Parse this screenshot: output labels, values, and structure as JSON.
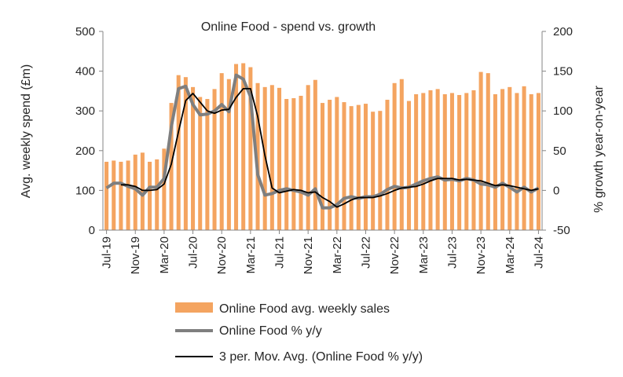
{
  "chart_data": {
    "type": "bar",
    "title": "Online Food - spend vs. growth",
    "ylabel": "Avg. weekly spend (£m)",
    "y2label": "% growth year-on-year",
    "ylim": [
      0,
      500
    ],
    "y2lim": [
      -50,
      200
    ],
    "yticks": [
      0,
      100,
      200,
      300,
      400,
      500
    ],
    "y2ticks": [
      -50,
      0,
      50,
      100,
      150,
      200
    ],
    "grid": false,
    "legend": "bottom",
    "colors": {
      "bars": "#F4A460",
      "yoy": "#7F7F7F",
      "ma": "#000000"
    },
    "categories": [
      "Jul-19",
      "Aug-19",
      "Sep-19",
      "Oct-19",
      "Nov-19",
      "Dec-19",
      "Jan-20",
      "Feb-20",
      "Mar-20",
      "Apr-20",
      "May-20",
      "Jun-20",
      "Jul-20",
      "Aug-20",
      "Sep-20",
      "Oct-20",
      "Nov-20",
      "Dec-20",
      "Jan-21",
      "Feb-21",
      "Mar-21",
      "Apr-21",
      "May-21",
      "Jun-21",
      "Jul-21",
      "Aug-21",
      "Sep-21",
      "Oct-21",
      "Nov-21",
      "Dec-21",
      "Jan-22",
      "Feb-22",
      "Mar-22",
      "Apr-22",
      "May-22",
      "Jun-22",
      "Jul-22",
      "Aug-22",
      "Sep-22",
      "Oct-22",
      "Nov-22",
      "Dec-22",
      "Jan-23",
      "Feb-23",
      "Mar-23",
      "Apr-23",
      "May-23",
      "Jun-23",
      "Jul-23",
      "Aug-23",
      "Sep-23",
      "Oct-23",
      "Nov-23",
      "Dec-23",
      "Jan-24",
      "Feb-24",
      "Mar-24",
      "Apr-24",
      "May-24",
      "Jun-24",
      "Jul-24"
    ],
    "tick_labels": [
      "Jul-19",
      "Nov-19",
      "Mar-20",
      "Jul-20",
      "Nov-20",
      "Mar-21",
      "Jul-21",
      "Nov-21",
      "Mar-22",
      "Jul-22",
      "Nov-22",
      "Mar-23",
      "Jul-23",
      "Nov-23",
      "Mar-24",
      "Jul-24"
    ],
    "series": [
      {
        "name": "Online Food avg. weekly sales",
        "type": "bar",
        "axis": "left",
        "values": [
          172,
          175,
          172,
          175,
          190,
          195,
          172,
          178,
          205,
          320,
          390,
          385,
          360,
          335,
          330,
          355,
          395,
          380,
          418,
          420,
          410,
          370,
          360,
          365,
          358,
          330,
          332,
          338,
          365,
          378,
          320,
          328,
          335,
          322,
          312,
          315,
          318,
          298,
          300,
          328,
          370,
          380,
          325,
          342,
          345,
          352,
          355,
          342,
          345,
          340,
          345,
          352,
          398,
          395,
          342,
          355,
          360,
          345,
          362,
          342,
          345
        ]
      },
      {
        "name": "Online Food % y/y",
        "type": "line",
        "axis": "right",
        "values": [
          3,
          9,
          9,
          5,
          2,
          -6,
          4,
          4,
          15,
          80,
          128,
          131,
          108,
          95,
          96,
          100,
          108,
          99,
          145,
          140,
          118,
          20,
          -6,
          -4,
          0,
          2,
          0,
          -2,
          -6,
          2,
          -22,
          -22,
          -18,
          -10,
          -8,
          -10,
          -8,
          -8,
          -5,
          1,
          5,
          3,
          4,
          8,
          12,
          15,
          17,
          13,
          14,
          12,
          15,
          13,
          8,
          7,
          4,
          9,
          4,
          -2,
          4,
          -2,
          3
        ]
      },
      {
        "name": "3 per. Mov. Avg. (Online Food % y/y)",
        "type": "line",
        "axis": "right",
        "values": [
          null,
          null,
          7,
          7,
          5,
          0,
          0,
          1,
          8,
          33,
          74,
          113,
          122,
          111,
          100,
          97,
          101,
          102,
          117,
          128,
          128,
          93,
          44,
          3,
          -3,
          -1,
          1,
          0,
          -3,
          -2,
          -9,
          -14,
          -21,
          -17,
          -12,
          -9,
          -9,
          -9,
          -7,
          -4,
          0,
          3,
          4,
          5,
          8,
          12,
          15,
          15,
          15,
          13,
          14,
          13,
          12,
          9,
          6,
          7,
          6,
          4,
          2,
          0,
          2
        ]
      }
    ]
  }
}
